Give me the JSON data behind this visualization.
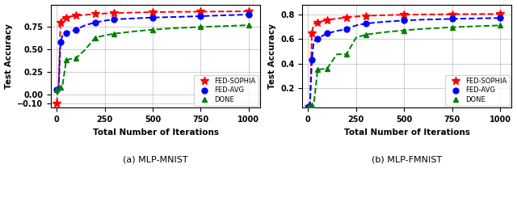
{
  "mnist": {
    "fed_sophia": {
      "x": [
        1,
        5,
        10,
        20,
        30,
        50,
        75,
        100,
        150,
        200,
        250,
        300,
        400,
        500,
        600,
        750,
        875,
        1000
      ],
      "y": [
        -0.1,
        0.02,
        0.05,
        0.8,
        0.84,
        0.855,
        0.868,
        0.875,
        0.885,
        0.895,
        0.9,
        0.905,
        0.91,
        0.915,
        0.918,
        0.92,
        0.922,
        0.924
      ]
    },
    "fed_avg": {
      "x": [
        1,
        5,
        10,
        20,
        30,
        50,
        75,
        100,
        150,
        200,
        250,
        300,
        400,
        500,
        600,
        750,
        875,
        1000
      ],
      "y": [
        0.05,
        0.055,
        0.06,
        0.58,
        0.65,
        0.68,
        0.7,
        0.72,
        0.77,
        0.8,
        0.82,
        0.835,
        0.845,
        0.855,
        0.86,
        0.87,
        0.88,
        0.888
      ]
    },
    "done": {
      "x": [
        1,
        5,
        10,
        20,
        30,
        50,
        75,
        100,
        150,
        200,
        250,
        300,
        400,
        500,
        600,
        750,
        875,
        1000
      ],
      "y": [
        0.05,
        0.055,
        0.07,
        0.08,
        0.09,
        0.38,
        0.395,
        0.4,
        0.5,
        0.63,
        0.655,
        0.675,
        0.7,
        0.72,
        0.735,
        0.75,
        0.76,
        0.77
      ]
    },
    "ylim": [
      -0.15,
      1.0
    ],
    "yticks": [
      -0.1,
      0.0,
      0.25,
      0.5,
      0.75
    ],
    "title": "(a) MLP-MNIST",
    "marker_x": {
      "fed_sophia": [
        1,
        20,
        50,
        100,
        200,
        300,
        500,
        750,
        1000
      ],
      "fed_avg": [
        1,
        20,
        50,
        100,
        200,
        300,
        500,
        750,
        1000
      ],
      "done": [
        1,
        20,
        50,
        100,
        200,
        300,
        500,
        750,
        1000
      ]
    }
  },
  "fmnist": {
    "fed_sophia": {
      "x": [
        1,
        5,
        10,
        20,
        30,
        50,
        75,
        100,
        150,
        200,
        250,
        300,
        400,
        500,
        600,
        750,
        875,
        1000
      ],
      "y": [
        0.05,
        0.055,
        0.065,
        0.65,
        0.72,
        0.735,
        0.745,
        0.755,
        0.765,
        0.775,
        0.782,
        0.788,
        0.793,
        0.797,
        0.799,
        0.801,
        0.802,
        0.803
      ]
    },
    "fed_avg": {
      "x": [
        1,
        5,
        10,
        20,
        30,
        50,
        75,
        100,
        150,
        200,
        250,
        300,
        400,
        500,
        600,
        750,
        875,
        1000
      ],
      "y": [
        0.05,
        0.055,
        0.06,
        0.43,
        0.58,
        0.6,
        0.625,
        0.645,
        0.665,
        0.68,
        0.71,
        0.725,
        0.74,
        0.75,
        0.757,
        0.763,
        0.767,
        0.77
      ]
    },
    "done": {
      "x": [
        1,
        5,
        10,
        20,
        30,
        50,
        75,
        100,
        150,
        200,
        250,
        300,
        400,
        500,
        600,
        750,
        875,
        1000
      ],
      "y": [
        0.05,
        0.055,
        0.06,
        0.065,
        0.07,
        0.35,
        0.355,
        0.36,
        0.475,
        0.475,
        0.61,
        0.635,
        0.655,
        0.67,
        0.682,
        0.695,
        0.703,
        0.71
      ]
    },
    "ylim": [
      0.04,
      0.88
    ],
    "yticks": [
      0.2,
      0.4,
      0.6,
      0.8
    ],
    "title": "(b) MLP-FMNIST",
    "marker_x": {
      "fed_sophia": [
        1,
        20,
        50,
        100,
        200,
        300,
        500,
        750,
        1000
      ],
      "fed_avg": [
        1,
        20,
        50,
        100,
        200,
        300,
        500,
        750,
        1000
      ],
      "done": [
        1,
        20,
        50,
        100,
        200,
        300,
        500,
        750,
        1000
      ]
    }
  },
  "colors": {
    "fed_sophia": "#FF0000",
    "fed_avg": "#0000FF",
    "done": "#008000"
  },
  "xlabel": "Total Number of Iterations",
  "ylabel": "Test Accuracy",
  "xticks": [
    0,
    250,
    500,
    750,
    1000
  ],
  "legend_labels": [
    "FED-SOPHIA",
    "FED-AVG",
    "DONE"
  ],
  "marker_indices": [
    0,
    3,
    5,
    7,
    9,
    11,
    13,
    15,
    17
  ]
}
